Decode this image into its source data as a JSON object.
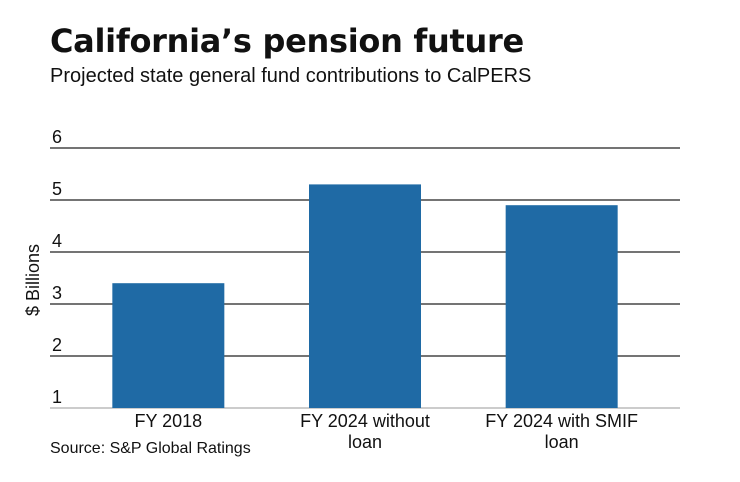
{
  "title": "California’s pension future",
  "subtitle": "Projected state general fund contributions to CalPERS",
  "source": "Source: S&P Global Ratings",
  "colors": {
    "bar": "#1f6aa5",
    "grid": "#222222",
    "text": "#111111"
  },
  "chart_data": {
    "type": "bar",
    "title": "California’s pension future",
    "subtitle": "Projected state general fund contributions to CalPERS",
    "categories": [
      "FY 2018",
      "FY 2024 without loan",
      "FY 2024 with SMIF loan"
    ],
    "category_lines": [
      [
        "FY 2018"
      ],
      [
        "FY 2024 without",
        "loan"
      ],
      [
        "FY 2024 with SMIF",
        "loan"
      ]
    ],
    "values": [
      3.4,
      5.3,
      4.9
    ],
    "xlabel": "",
    "ylabel": "$ Billions",
    "ylim": [
      1,
      6
    ],
    "yticks": [
      1,
      2,
      3,
      4,
      5,
      6
    ],
    "grid": true,
    "legend": "none"
  }
}
